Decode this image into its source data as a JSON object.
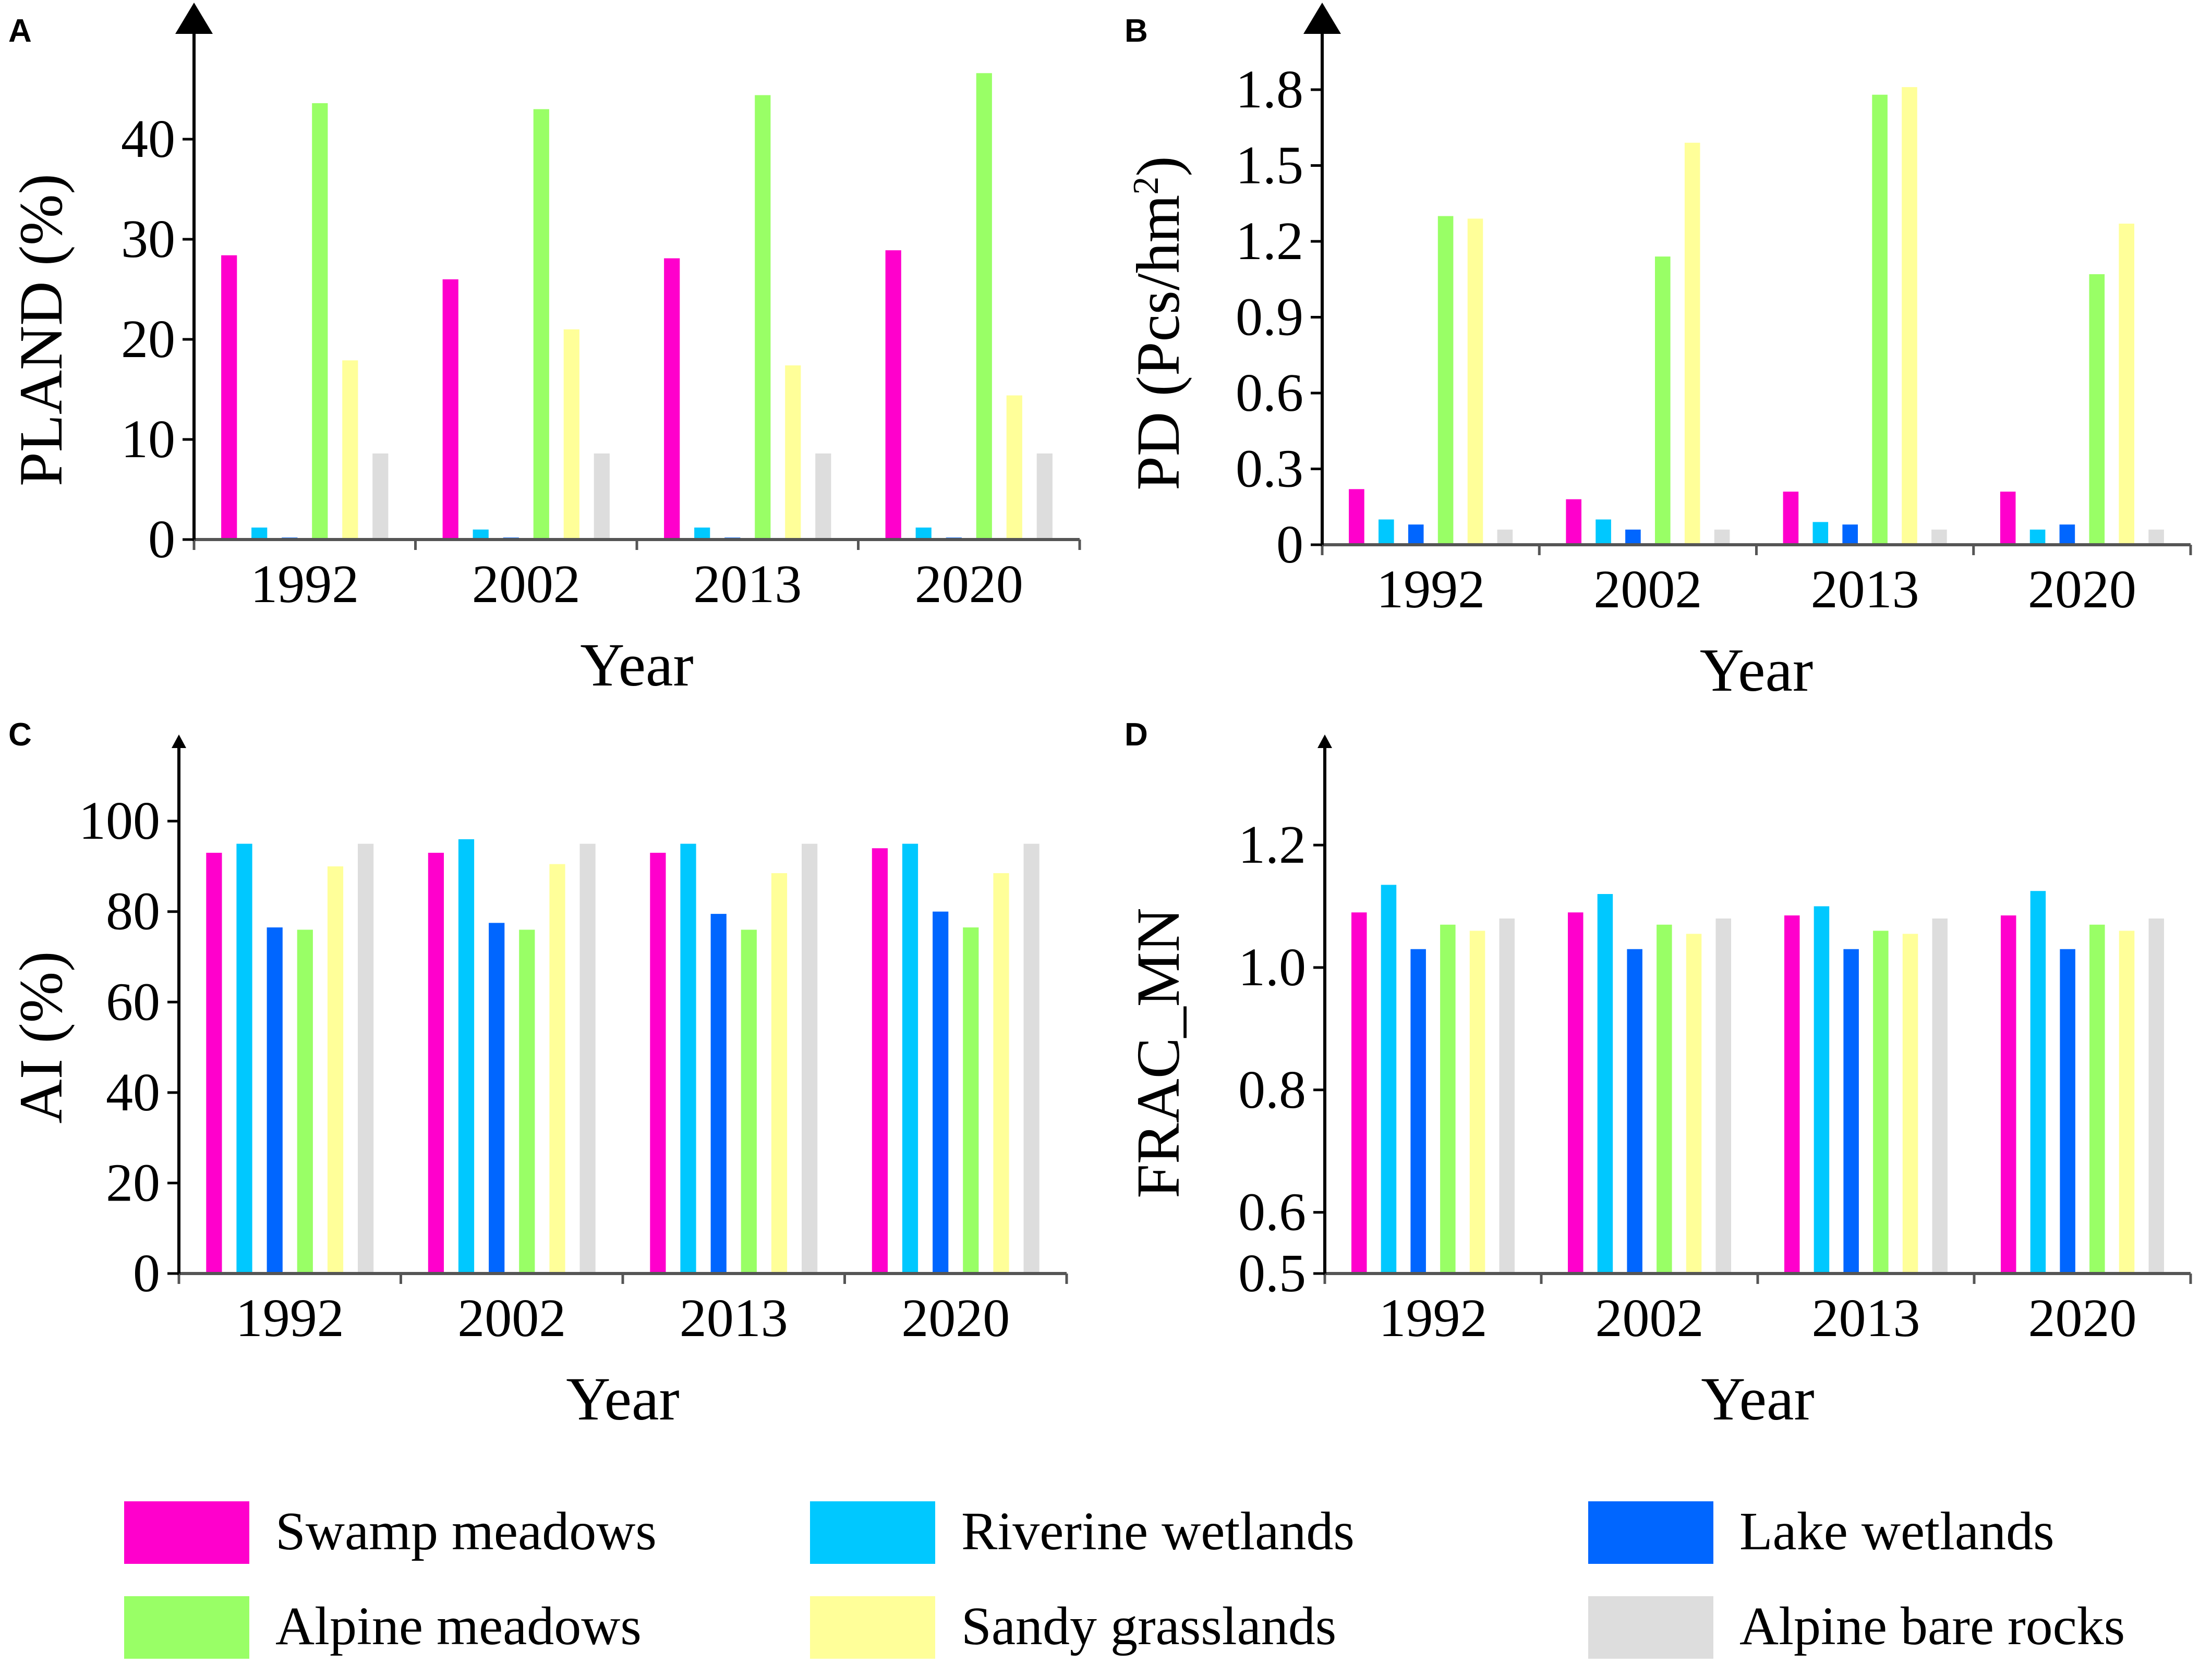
{
  "legend": [
    {
      "label": "Swamp meadows",
      "color": "#ff00cc"
    },
    {
      "label": "Riverine wetlands",
      "color": "#00c8ff"
    },
    {
      "label": "Lake wetlands",
      "color": "#0066ff"
    },
    {
      "label": "Alpine meadows",
      "color": "#99ff66"
    },
    {
      "label": "Sandy grasslands",
      "color": "#ffff99"
    },
    {
      "label": "Alpine bare rocks",
      "color": "#dddddd"
    }
  ],
  "chart_data": [
    {
      "panel": "A",
      "type": "bar",
      "xlabel": "Year",
      "ylabel": "PLAND (%)",
      "ylim": [
        0,
        50
      ],
      "yticks": [
        0,
        10,
        20,
        30,
        40
      ],
      "categories": [
        "1992",
        "2002",
        "2013",
        "2020"
      ],
      "series": [
        {
          "name": "Swamp meadows",
          "values": [
            28.4,
            26.0,
            28.1,
            28.9
          ]
        },
        {
          "name": "Riverine wetlands",
          "values": [
            1.2,
            1.0,
            1.2,
            1.2
          ]
        },
        {
          "name": "Lake wetlands",
          "values": [
            0.2,
            0.2,
            0.2,
            0.2
          ]
        },
        {
          "name": "Alpine meadows",
          "values": [
            43.6,
            43.0,
            44.4,
            46.6
          ]
        },
        {
          "name": "Sandy grasslands",
          "values": [
            17.9,
            21.0,
            17.4,
            14.4
          ]
        },
        {
          "name": "Alpine bare rocks",
          "values": [
            8.6,
            8.6,
            8.6,
            8.6
          ]
        }
      ]
    },
    {
      "panel": "B",
      "type": "bar",
      "xlabel": "Year",
      "ylabel": "PD (Pcs/hm",
      "ylabel_sup": "2",
      "ylabel_end": ")",
      "ylim": [
        0,
        2.0
      ],
      "yticks": [
        "0",
        "0.3",
        "0.6",
        "0.9",
        "1.2",
        "1.5",
        "1.8"
      ],
      "categories": [
        "1992",
        "2002",
        "2013",
        "2020"
      ],
      "series": [
        {
          "name": "Swamp meadows",
          "values": [
            0.22,
            0.18,
            0.21,
            0.21
          ]
        },
        {
          "name": "Riverine wetlands",
          "values": [
            0.1,
            0.1,
            0.09,
            0.06
          ]
        },
        {
          "name": "Lake wetlands",
          "values": [
            0.08,
            0.06,
            0.08,
            0.08
          ]
        },
        {
          "name": "Alpine meadows",
          "values": [
            1.3,
            1.14,
            1.78,
            1.07
          ]
        },
        {
          "name": "Sandy grasslands",
          "values": [
            1.29,
            1.59,
            1.81,
            1.27
          ]
        },
        {
          "name": "Alpine bare rocks",
          "values": [
            0.06,
            0.06,
            0.06,
            0.06
          ]
        }
      ]
    },
    {
      "panel": "C",
      "type": "bar",
      "xlabel": "Year",
      "ylabel": "AI  (%)",
      "ylim": [
        0,
        115
      ],
      "yticks": [
        0,
        20,
        40,
        60,
        80,
        100
      ],
      "categories": [
        "1992",
        "2002",
        "2013",
        "2020"
      ],
      "series": [
        {
          "name": "Swamp meadows",
          "values": [
            93,
            93,
            93,
            94
          ]
        },
        {
          "name": "Riverine wetlands",
          "values": [
            95,
            96,
            95,
            95
          ]
        },
        {
          "name": "Lake wetlands",
          "values": [
            76.5,
            77.5,
            79.5,
            80
          ]
        },
        {
          "name": "Alpine meadows",
          "values": [
            76,
            76,
            76,
            76.5
          ]
        },
        {
          "name": "Sandy grasslands",
          "values": [
            90,
            90.5,
            88.5,
            88.5
          ]
        },
        {
          "name": "Alpine bare rocks",
          "values": [
            95,
            95,
            95,
            95
          ]
        }
      ]
    },
    {
      "panel": "D",
      "type": "bar",
      "xlabel": "Year",
      "ylabel": "FRAC_MN",
      "ylim": [
        0.5,
        1.35
      ],
      "yticks": [
        "0.5",
        "0.6",
        "0.8",
        "1.0",
        "1.2"
      ],
      "categories": [
        "1992",
        "2002",
        "2013",
        "2020"
      ],
      "series": [
        {
          "name": "Swamp meadows",
          "values": [
            1.09,
            1.09,
            1.085,
            1.085
          ]
        },
        {
          "name": "Riverine wetlands",
          "values": [
            1.135,
            1.12,
            1.1,
            1.125
          ]
        },
        {
          "name": "Lake wetlands",
          "values": [
            1.03,
            1.03,
            1.03,
            1.03
          ]
        },
        {
          "name": "Alpine meadows",
          "values": [
            1.07,
            1.07,
            1.06,
            1.07
          ]
        },
        {
          "name": "Sandy grasslands",
          "values": [
            1.06,
            1.055,
            1.055,
            1.06
          ]
        },
        {
          "name": "Alpine bare rocks",
          "values": [
            1.08,
            1.08,
            1.08,
            1.08
          ]
        }
      ]
    }
  ]
}
